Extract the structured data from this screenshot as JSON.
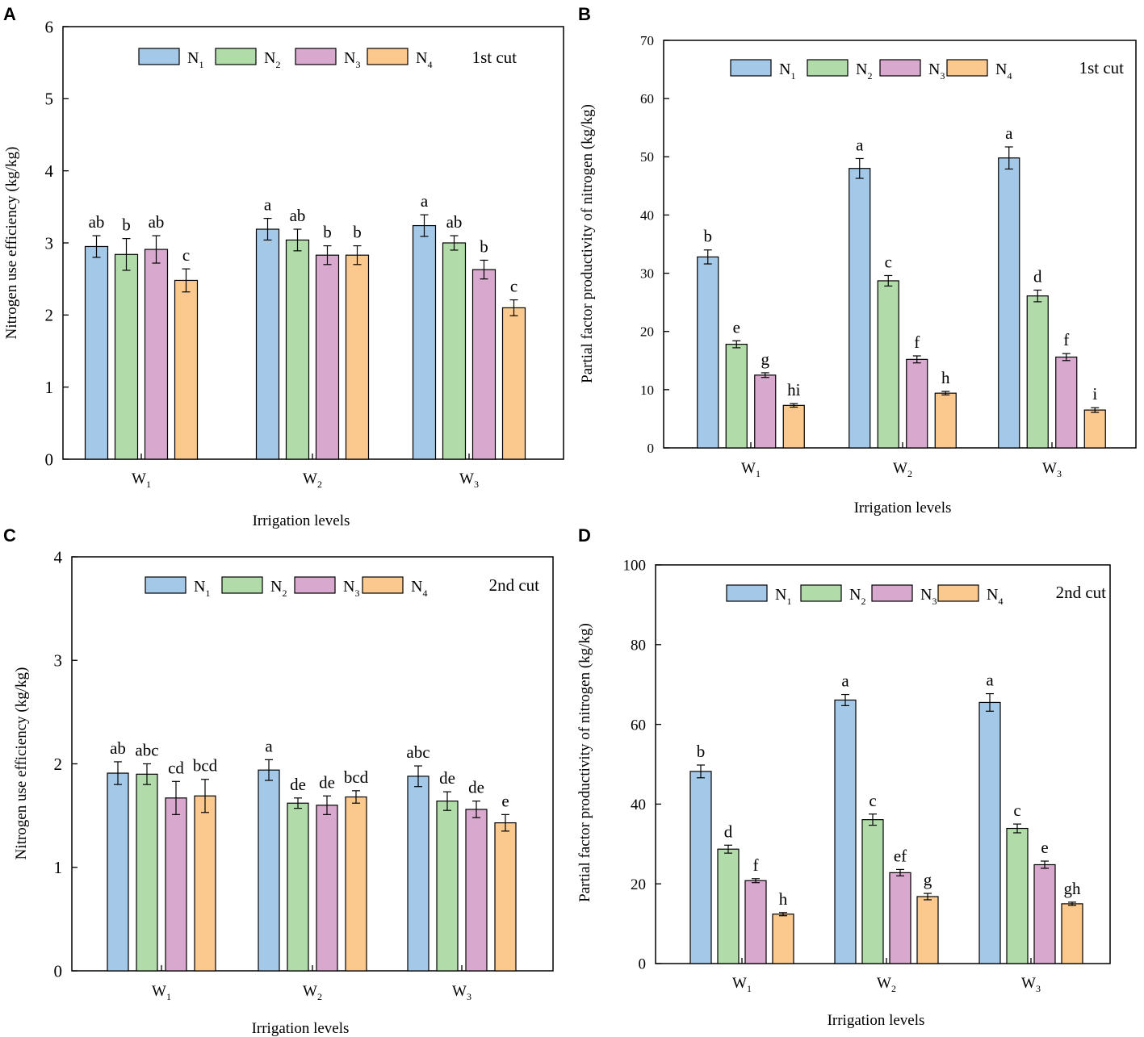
{
  "legend": [
    "N1",
    "N2",
    "N3",
    "N4"
  ],
  "colors": {
    "N1": "#a3c8e8",
    "N2": "#b1dcaa",
    "N3": "#d8a8cf",
    "N4": "#fbc98e"
  },
  "chart_data": [
    {
      "panel": "A",
      "type": "bar",
      "annotation": "1st cut",
      "xlabel": "Irrigation levels",
      "ylabel": "Nitrogen use efficiency (kg/kg)",
      "categories": [
        "W1",
        "W2",
        "W3"
      ],
      "ylim": [
        0,
        6
      ],
      "yticks": [
        0,
        1,
        2,
        3,
        4,
        5,
        6
      ],
      "series": [
        {
          "name": "N1",
          "values": [
            2.95,
            3.19,
            3.24
          ],
          "errors": [
            0.15,
            0.15,
            0.15
          ],
          "letters": [
            "ab",
            "a",
            "a"
          ]
        },
        {
          "name": "N2",
          "values": [
            2.84,
            3.04,
            3.0
          ],
          "errors": [
            0.22,
            0.15,
            0.1
          ],
          "letters": [
            "b",
            "ab",
            "ab"
          ]
        },
        {
          "name": "N3",
          "values": [
            2.91,
            2.83,
            2.63
          ],
          "errors": [
            0.19,
            0.13,
            0.13
          ],
          "letters": [
            "ab",
            "b",
            "b"
          ]
        },
        {
          "name": "N4",
          "values": [
            2.48,
            2.83,
            2.1
          ],
          "errors": [
            0.16,
            0.13,
            0.11
          ],
          "letters": [
            "c",
            "b",
            "c"
          ]
        }
      ]
    },
    {
      "panel": "B",
      "type": "bar",
      "annotation": "1st cut",
      "xlabel": "Irrigation levels",
      "ylabel": "Partial factor productivity of nitrogen (kg/kg)",
      "categories": [
        "W1",
        "W2",
        "W3"
      ],
      "ylim": [
        0,
        70
      ],
      "yticks": [
        0,
        10,
        20,
        30,
        40,
        50,
        60,
        70
      ],
      "series": [
        {
          "name": "N1",
          "values": [
            32.8,
            48.0,
            49.8
          ],
          "errors": [
            1.2,
            1.7,
            1.9
          ],
          "letters": [
            "b",
            "a",
            "a"
          ]
        },
        {
          "name": "N2",
          "values": [
            17.8,
            28.7,
            26.1
          ],
          "errors": [
            0.6,
            0.9,
            1.0
          ],
          "letters": [
            "e",
            "c",
            "d"
          ]
        },
        {
          "name": "N3",
          "values": [
            12.5,
            15.2,
            15.6
          ],
          "errors": [
            0.4,
            0.6,
            0.6
          ],
          "letters": [
            "g",
            "f",
            "f"
          ]
        },
        {
          "name": "N4",
          "values": [
            7.3,
            9.4,
            6.5
          ],
          "errors": [
            0.3,
            0.3,
            0.4
          ],
          "letters": [
            "hi",
            "h",
            "i"
          ]
        }
      ]
    },
    {
      "panel": "C",
      "type": "bar",
      "annotation": "2nd cut",
      "xlabel": "Irrigation levels",
      "ylabel": "Nitrogen use efficiency (kg/kg)",
      "categories": [
        "W1",
        "W2",
        "W3"
      ],
      "ylim": [
        0,
        4
      ],
      "yticks": [
        0,
        1,
        2,
        3,
        4
      ],
      "series": [
        {
          "name": "N1",
          "values": [
            1.91,
            1.94,
            1.88
          ],
          "errors": [
            0.11,
            0.1,
            0.1
          ],
          "letters": [
            "ab",
            "a",
            "abc"
          ]
        },
        {
          "name": "N2",
          "values": [
            1.9,
            1.62,
            1.64
          ],
          "errors": [
            0.1,
            0.05,
            0.09
          ],
          "letters": [
            "abc",
            "de",
            "de"
          ]
        },
        {
          "name": "N3",
          "values": [
            1.67,
            1.6,
            1.56
          ],
          "errors": [
            0.16,
            0.09,
            0.08
          ],
          "letters": [
            "cd",
            "de",
            "de"
          ]
        },
        {
          "name": "N4",
          "values": [
            1.69,
            1.68,
            1.43
          ],
          "errors": [
            0.16,
            0.06,
            0.08
          ],
          "letters": [
            "bcd",
            "bcd",
            "e"
          ]
        }
      ]
    },
    {
      "panel": "D",
      "type": "bar",
      "annotation": "2nd cut",
      "xlabel": "Irrigation levels",
      "ylabel": "Partial factor productivity of nitrogen (kg/kg)",
      "categories": [
        "W1",
        "W2",
        "W3"
      ],
      "ylim": [
        0,
        100
      ],
      "yticks": [
        0,
        20,
        40,
        60,
        80,
        100
      ],
      "series": [
        {
          "name": "N1",
          "values": [
            48.2,
            66.1,
            65.5
          ],
          "errors": [
            1.6,
            1.4,
            2.2
          ],
          "letters": [
            "b",
            "a",
            "a"
          ]
        },
        {
          "name": "N2",
          "values": [
            28.7,
            36.1,
            33.9
          ],
          "errors": [
            1.0,
            1.4,
            1.1
          ],
          "letters": [
            "d",
            "c",
            "c"
          ]
        },
        {
          "name": "N3",
          "values": [
            20.8,
            22.8,
            24.8
          ],
          "errors": [
            0.5,
            0.8,
            0.9
          ],
          "letters": [
            "f",
            "ef",
            "e"
          ]
        },
        {
          "name": "N4",
          "values": [
            12.4,
            16.8,
            15.0
          ],
          "errors": [
            0.4,
            0.8,
            0.4
          ],
          "letters": [
            "h",
            "g",
            "gh"
          ]
        }
      ]
    }
  ]
}
